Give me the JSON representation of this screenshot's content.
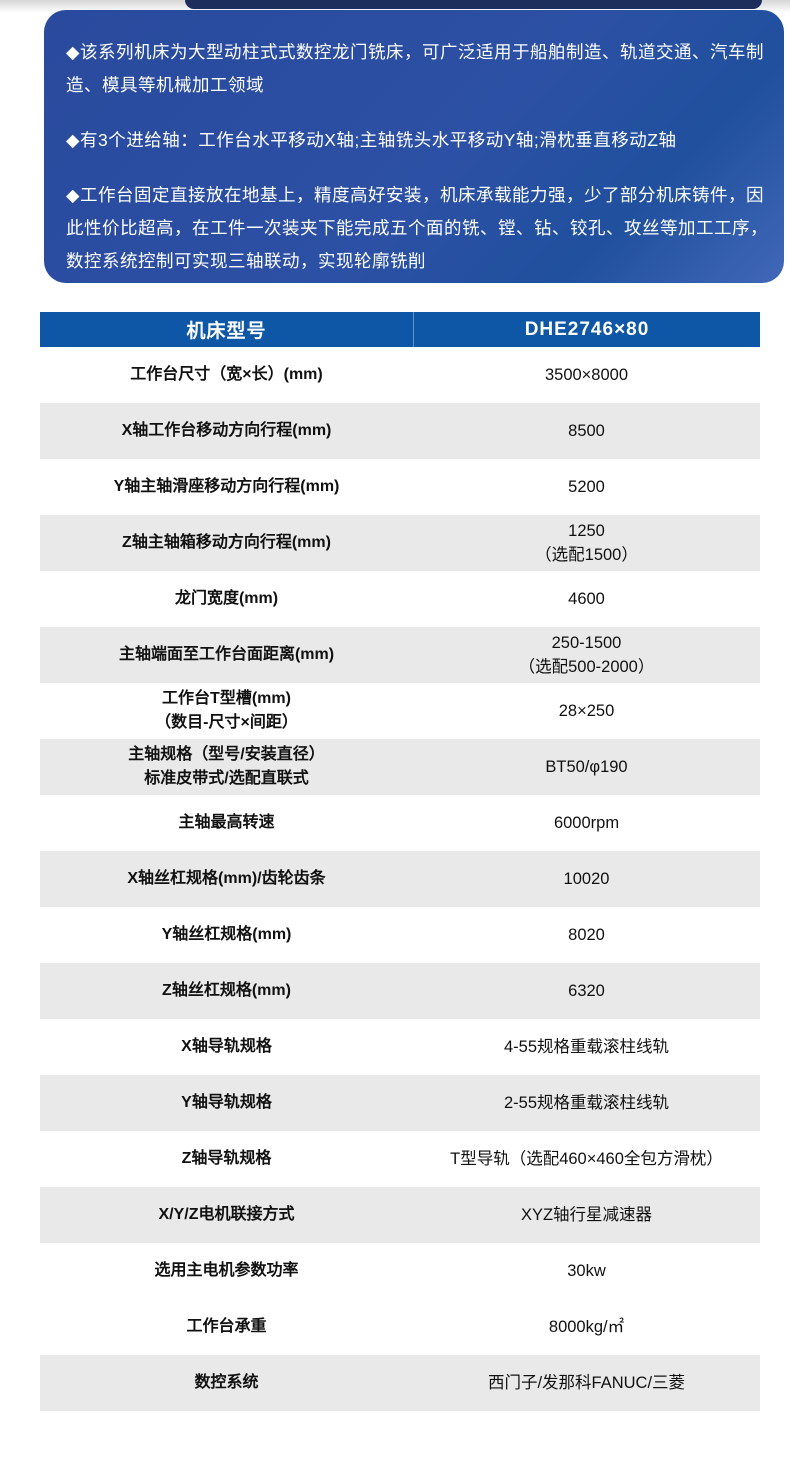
{
  "colors": {
    "intro_gradient_start": "#294a9d",
    "intro_gradient_end": "#4167b8",
    "intro_text": "#ffffff",
    "top_bar_navy": "#1d2d5c",
    "table_header_bg": "#0e57a7",
    "table_header_text": "#ffffff",
    "row_bg": "#ffffff",
    "row_alt_bg": "#e9e9e9",
    "body_text": "#111111"
  },
  "intro": {
    "bullets": [
      "◆该系列机床为大型动柱式式数控龙门铣床，可广泛适用于船舶制造、轨道交通、汽车制造、模具等机械加工领域",
      "◆有3个进给轴：工作台水平移动X轴;主轴铣头水平移动Y轴;滑枕垂直移动Z轴",
      "◆工作台固定直接放在地基上，精度高好安装，机床承载能力强，少了部分机床铸件，因此性价比超高，在工件一次装夹下能完成五个面的铣、镗、钻、铰孔、攻丝等加工工序，数控系统控制可实现三轴联动，实现轮廓铣削"
    ]
  },
  "table": {
    "header": {
      "param_label": "机床型号",
      "model": "DHE2746×80"
    },
    "rows": [
      {
        "label": "工作台尺寸（宽×长）(mm)",
        "value": "3500×8000"
      },
      {
        "label": "X轴工作台移动方向行程(mm)",
        "value": "8500"
      },
      {
        "label": "Y轴主轴滑座移动方向行程(mm)",
        "value": "5200"
      },
      {
        "label": "Z轴主轴箱移动方向行程(mm)",
        "value": "1250",
        "value2": "（选配1500）"
      },
      {
        "label": "龙门宽度(mm)",
        "value": "4600"
      },
      {
        "label": "主轴端面至工作台面距离(mm)",
        "value": "250-1500",
        "value2": "（选配500-2000）"
      },
      {
        "label": "工作台T型槽(mm)",
        "label2": "（数目-尺寸×间距）",
        "value": "28×250"
      },
      {
        "label": "主轴规格（型号/安装直径）",
        "label2": "标准皮带式/选配直联式",
        "value": "BT50/φ190"
      },
      {
        "label": "主轴最高转速",
        "value": "6000rpm"
      },
      {
        "label": "X轴丝杠规格(mm)/齿轮齿条",
        "value": "10020"
      },
      {
        "label": "Y轴丝杠规格(mm)",
        "value": "8020"
      },
      {
        "label": "Z轴丝杠规格(mm)",
        "value": "6320"
      },
      {
        "label": "X轴导轨规格",
        "value": "4-55规格重载滚柱线轨"
      },
      {
        "label": "Y轴导轨规格",
        "value": "2-55规格重载滚柱线轨"
      },
      {
        "label": "Z轴导轨规格",
        "value": "T型导轨（选配460×460全包方滑枕）"
      },
      {
        "label": "X/Y/Z电机联接方式",
        "value": "XYZ轴行星减速器"
      },
      {
        "label": "选用主电机参数功率",
        "value": "30kw"
      },
      {
        "label": "工作台承重",
        "value": "8000kg/㎡"
      },
      {
        "label": "数控系统",
        "value": "西门子/发那科FANUC/三菱"
      }
    ]
  }
}
